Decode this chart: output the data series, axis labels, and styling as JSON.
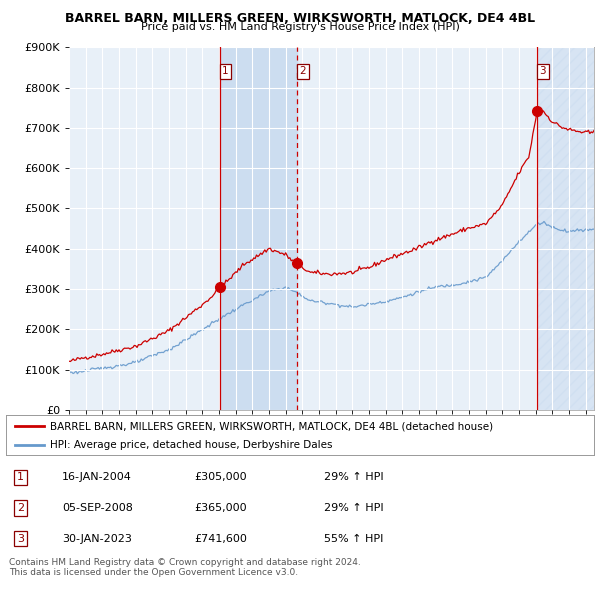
{
  "title": "BARREL BARN, MILLERS GREEN, WIRKSWORTH, MATLOCK, DE4 4BL",
  "subtitle": "Price paid vs. HM Land Registry's House Price Index (HPI)",
  "red_label": "BARREL BARN, MILLERS GREEN, WIRKSWORTH, MATLOCK, DE4 4BL (detached house)",
  "blue_label": "HPI: Average price, detached house, Derbyshire Dales",
  "footer": "Contains HM Land Registry data © Crown copyright and database right 2024.\nThis data is licensed under the Open Government Licence v3.0.",
  "purchases": [
    {
      "num": 1,
      "date": "16-JAN-2004",
      "price": 305000,
      "pct": "29%",
      "direction": "↑"
    },
    {
      "num": 2,
      "date": "05-SEP-2008",
      "price": 365000,
      "pct": "29%",
      "direction": "↑"
    },
    {
      "num": 3,
      "date": "30-JAN-2023",
      "price": 741600,
      "pct": "55%",
      "direction": "↑"
    }
  ],
  "purchase_dates_num": [
    2004.04,
    2008.68,
    2023.08
  ],
  "purchase_prices": [
    305000,
    365000,
    741600
  ],
  "ylim": [
    0,
    900000
  ],
  "yticks": [
    0,
    100000,
    200000,
    300000,
    400000,
    500000,
    600000,
    700000,
    800000,
    900000
  ],
  "xstart": 1995.0,
  "xend": 2026.5,
  "red_color": "#cc0000",
  "blue_color": "#6699cc",
  "shaded_periods": [
    [
      2004.04,
      2008.68
    ]
  ],
  "hatch_period": [
    2023.08,
    2026.5
  ],
  "vline_solid": [
    2004.04,
    2023.08
  ],
  "vline_dashed": [
    2008.68
  ],
  "bg_color": "#e8f0f8"
}
